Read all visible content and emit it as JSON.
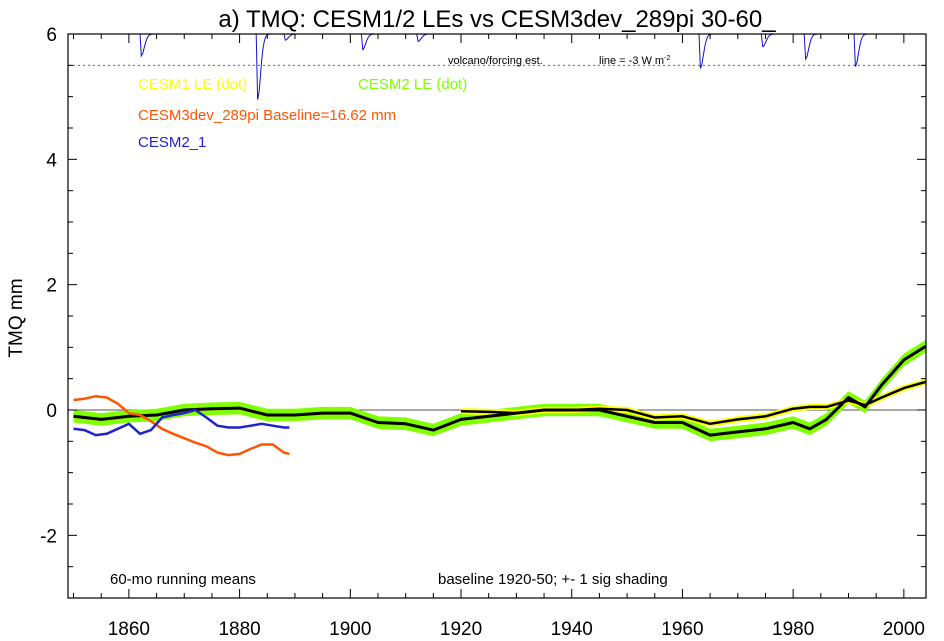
{
  "chart_data": {
    "type": "line",
    "title": "a) TMQ: CESM1/2 LEs vs CESM3dev_289pi 30-60_",
    "ylabel": "TMQ mm",
    "xlabel": "",
    "xlim": [
      1849,
      2004
    ],
    "ylim": [
      -3,
      6
    ],
    "x_ticks": [
      1860,
      1880,
      1900,
      1920,
      1940,
      1960,
      1980,
      2000
    ],
    "y_ticks": [
      -2,
      0,
      2,
      4,
      6
    ],
    "grid": false,
    "zero_line": 0,
    "legend_labels": [
      "CESM1 LE (dot)",
      "CESM2 LE (dot)",
      "CESM3dev_289pi Baseline=16.62 mm",
      "CESM2_1"
    ],
    "annotations": {
      "volcano_label": "volcano/forcing est.",
      "line_label": "line = -3 W m",
      "line_label_sup": "-2",
      "running_means": "60-mo running means",
      "baseline_note": "baseline 1920-50; +- 1 sig shading"
    },
    "colors": {
      "cesm1": "#ffff00",
      "cesm2_shading": "#80ff00",
      "cesm3": "#ff5500",
      "cesm2_1": "#2222cc",
      "mean": "#000000",
      "volcano": "#1111cc",
      "dotted_line": "#666666"
    },
    "series": [
      {
        "name": "CESM2 LE (dot)",
        "sigma": 0.1,
        "x": [
          1850,
          1855,
          1860,
          1865,
          1870,
          1875,
          1880,
          1885,
          1890,
          1895,
          1900,
          1905,
          1910,
          1915,
          1920,
          1925,
          1930,
          1935,
          1940,
          1945,
          1950,
          1955,
          1960,
          1965,
          1970,
          1975,
          1980,
          1983,
          1986,
          1990,
          1993,
          1996,
          2000,
          2004
        ],
        "y": [
          -0.1,
          -0.15,
          -0.1,
          -0.08,
          0.0,
          0.02,
          0.03,
          -0.08,
          -0.08,
          -0.05,
          -0.05,
          -0.2,
          -0.22,
          -0.32,
          -0.15,
          -0.1,
          -0.05,
          0.0,
          0.0,
          0.0,
          -0.1,
          -0.2,
          -0.2,
          -0.4,
          -0.35,
          -0.3,
          -0.2,
          -0.3,
          -0.15,
          0.2,
          0.05,
          0.4,
          0.8,
          1.02
        ]
      },
      {
        "name": "CESM1 LE (dot)",
        "sigma": 0.05,
        "x": [
          1920,
          1925,
          1930,
          1935,
          1940,
          1945,
          1950,
          1955,
          1960,
          1965,
          1970,
          1975,
          1980,
          1983,
          1986,
          1990,
          1993,
          1996,
          2000,
          2004
        ],
        "y": [
          -0.02,
          -0.03,
          -0.05,
          0.0,
          0.0,
          0.02,
          0.0,
          -0.12,
          -0.1,
          -0.22,
          -0.15,
          -0.1,
          0.02,
          0.05,
          0.05,
          0.15,
          0.08,
          0.2,
          0.35,
          0.45
        ]
      },
      {
        "name": "CESM3dev_289pi Baseline=16.62 mm",
        "x": [
          1850,
          1852,
          1854,
          1856,
          1858,
          1860,
          1862,
          1864,
          1866,
          1868,
          1870,
          1872,
          1874,
          1876,
          1878,
          1880,
          1882,
          1884,
          1886,
          1888,
          1889
        ],
        "y": [
          0.16,
          0.18,
          0.22,
          0.2,
          0.1,
          -0.05,
          -0.08,
          -0.18,
          -0.3,
          -0.38,
          -0.45,
          -0.52,
          -0.58,
          -0.68,
          -0.72,
          -0.7,
          -0.62,
          -0.55,
          -0.55,
          -0.68,
          -0.7
        ]
      },
      {
        "name": "CESM2_1",
        "x": [
          1850,
          1852,
          1854,
          1856,
          1858,
          1860,
          1862,
          1864,
          1866,
          1868,
          1870,
          1872,
          1874,
          1876,
          1878,
          1880,
          1882,
          1884,
          1886,
          1888,
          1889
        ],
        "y": [
          -0.3,
          -0.32,
          -0.4,
          -0.38,
          -0.3,
          -0.22,
          -0.38,
          -0.32,
          -0.12,
          -0.08,
          -0.05,
          0.0,
          -0.12,
          -0.25,
          -0.28,
          -0.28,
          -0.25,
          -0.22,
          -0.25,
          -0.28,
          -0.28
        ]
      }
    ],
    "volcano_dips": [
      {
        "year": 1862.5,
        "y": 5.65
      },
      {
        "year": 1883.5,
        "y": 4.95
      },
      {
        "year": 1888.5,
        "y": 5.9
      },
      {
        "year": 1902.5,
        "y": 5.75
      },
      {
        "year": 1912.5,
        "y": 5.88
      },
      {
        "year": 1963.5,
        "y": 5.45
      },
      {
        "year": 1974.8,
        "y": 5.8
      },
      {
        "year": 1982.5,
        "y": 5.6
      },
      {
        "year": 1991.5,
        "y": 5.48
      }
    ],
    "volcano_baseline": 6.0,
    "dotted_level": 5.5
  }
}
